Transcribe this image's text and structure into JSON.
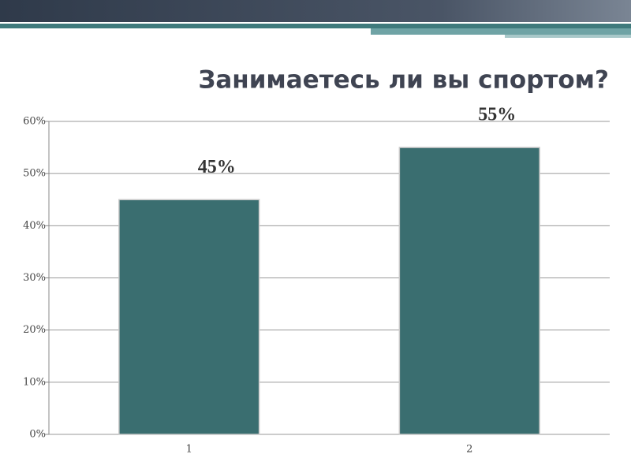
{
  "chart_data": {
    "type": "bar",
    "title": "Занимаетесь ли вы спортом?",
    "categories": [
      "1",
      "2"
    ],
    "values": [
      45,
      55
    ],
    "value_labels": [
      "45%",
      "55%"
    ],
    "color": "#3a6e70",
    "ylim": [
      0,
      60
    ],
    "yticks": [
      {
        "value": 0,
        "label": "0%"
      },
      {
        "value": 10,
        "label": "10%"
      },
      {
        "value": 20,
        "label": "20%"
      },
      {
        "value": 30,
        "label": "30%"
      },
      {
        "value": 40,
        "label": "40%"
      },
      {
        "value": 50,
        "label": "50%"
      },
      {
        "value": 60,
        "label": "60%"
      }
    ],
    "grid": true
  }
}
